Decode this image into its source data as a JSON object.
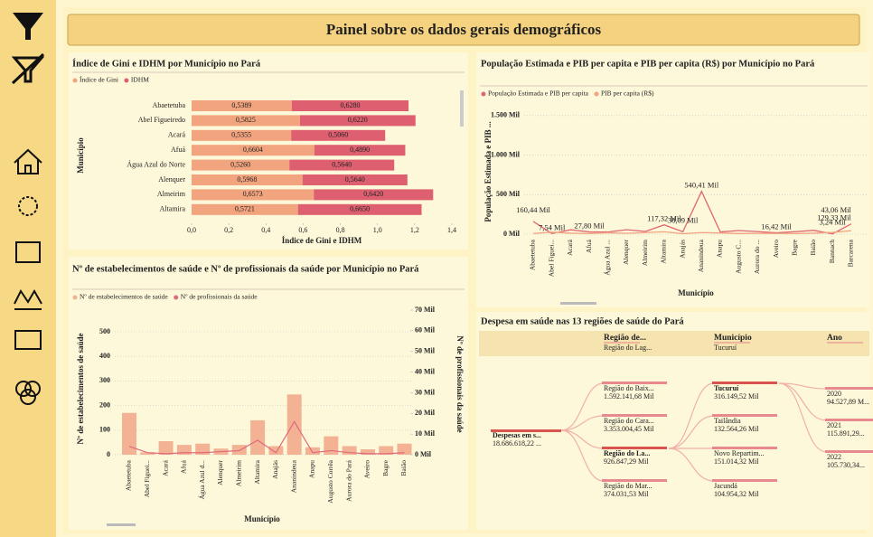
{
  "header": {
    "title": "Painel sobre os dados gerais demográficos"
  },
  "chart_data": [
    {
      "type": "bar",
      "orientation": "horizontal",
      "stacked": true,
      "grid": false,
      "title": "Índice de Gini e IDHM por Município no Pará",
      "xlabel": "Índice de Gini e IDHM",
      "ylabel": "Município",
      "categories": [
        "Abaetetuba",
        "Abel Figueiredo",
        "Acará",
        "Afuá",
        "Água Azul do Norte",
        "Alenquer",
        "Almeirim",
        "Altamira"
      ],
      "series": [
        {
          "name": "Índice de Gini",
          "color": "#f2a47e",
          "values": [
            0.5389,
            0.5825,
            0.5355,
            0.6604,
            0.526,
            0.5968,
            0.6573,
            0.5721
          ],
          "value_labels": [
            "0,5389",
            "0,5825",
            "0,5355",
            "0,6604",
            "0,5260",
            "0,5968",
            "0,6573",
            "0,5721"
          ]
        },
        {
          "name": "IDHM",
          "color": "#de5f6f",
          "values": [
            0.628,
            0.622,
            0.506,
            0.489,
            0.564,
            0.564,
            0.642,
            0.665
          ],
          "value_labels": [
            "0,6280",
            "0,6220",
            "0,5060",
            "0,4890",
            "0,5640",
            "0,5640",
            "0,6420",
            "0,6650"
          ]
        }
      ],
      "xlim": [
        0,
        1.4
      ],
      "xticks": [
        {
          "value": 0,
          "label": "0,0"
        },
        {
          "value": 0.2,
          "label": "0,2"
        },
        {
          "value": 0.4,
          "label": "0,4"
        },
        {
          "value": 0.6,
          "label": "0,6"
        },
        {
          "value": 0.8,
          "label": "0,8"
        },
        {
          "value": 1.0,
          "label": "1,0"
        },
        {
          "value": 1.2,
          "label": "1,2"
        },
        {
          "value": 1.4,
          "label": "1,4"
        }
      ]
    },
    {
      "type": "line",
      "grid": true,
      "title": "População Estimada e PIB per capita e PIB per capita (R$) por Município no Pará",
      "xlabel": "Município",
      "ylabel": "População Estimada e PIB ...",
      "categories": [
        "Abaetetuba",
        "Abel Figuei...",
        "Acará",
        "Afuá",
        "Água Azul ...",
        "Alenquer",
        "Almeirim",
        "Altamira",
        "Anajás",
        "Ananindeua",
        "Anapu",
        "Augusto C...",
        "Aurora do ...",
        "Aveiro",
        "Bagre",
        "Baião",
        "Bannach",
        "Barcarena"
      ],
      "series": [
        {
          "name": "População Estimada e PIB per capita",
          "color": "#e06575",
          "values": [
            160.44,
            7.54,
            55,
            27.8,
            27,
            56,
            34,
            117.32,
            30.09,
            540.41,
            28,
            46,
            31,
            16.42,
            31,
            48,
            3.24,
            129.33
          ],
          "value_labels": [
            "160,44 Mil",
            "7,54 Mil",
            null,
            "27,80 Mil",
            null,
            null,
            null,
            "117,32 Mil",
            "30,09 Mil",
            "540,41 Mil",
            null,
            null,
            null,
            "16,42 Mil",
            null,
            null,
            "3,24 Mil",
            "129,33 Mil"
          ]
        },
        {
          "name": "PIB per capita (R$)",
          "color": "#f2a47e",
          "values": [
            9,
            25,
            12,
            7,
            18,
            10,
            20,
            30,
            6,
            20,
            15,
            8,
            10,
            9,
            8,
            12,
            22,
            43.06
          ],
          "value_labels": [
            null,
            null,
            null,
            null,
            null,
            null,
            null,
            null,
            null,
            null,
            null,
            null,
            null,
            null,
            null,
            null,
            null,
            "43,06 Mil"
          ]
        }
      ],
      "ylim": [
        0,
        1600
      ],
      "yticks": [
        {
          "value": 0,
          "label": "0 Mil"
        },
        {
          "value": 500,
          "label": "500 Mil"
        },
        {
          "value": 1000,
          "label": "1.000 Mil"
        },
        {
          "value": 1500,
          "label": "1.500 Mil"
        }
      ]
    },
    {
      "type": "combo",
      "grid": true,
      "title": "Nº de estabelecimentos de saúde e Nº de profissionais da saúde por Município no Pará",
      "xlabel": "Município",
      "ylabel": "Nº de estabelecimentos de saúde",
      "y2label": "Nº de profissionais da saúde",
      "categories": [
        "Abaetetuba",
        "Abel Figuei...",
        "Acará",
        "Afuá",
        "Água Azul d...",
        "Alenquer",
        "Almeirim",
        "Altamira",
        "Anajás",
        "Ananindeua",
        "Anapu",
        "Augusto Corrêa",
        "Aurora do Pará",
        "Aveiro",
        "Bagre",
        "Baião"
      ],
      "series": [
        {
          "name": "Nº de estabelecimentos de saúde",
          "type": "bar",
          "color": "#f4b294",
          "values": [
            170,
            10,
            55,
            40,
            45,
            25,
            40,
            140,
            35,
            245,
            30,
            75,
            35,
            22,
            35,
            45
          ]
        },
        {
          "name": "Nº de profissionais da saúde",
          "type": "line",
          "axis": "y2",
          "color": "#de6a7c",
          "values": [
            4,
            1,
            0.5,
            1,
            1,
            1.5,
            2,
            7,
            1,
            16,
            1,
            2,
            1,
            0.5,
            0.5,
            1
          ]
        }
      ],
      "ylim": [
        0,
        588
      ],
      "yticks": [
        0,
        100,
        200,
        300,
        400,
        500
      ],
      "y2lim": [
        0,
        70
      ],
      "y2ticks": [
        {
          "value": 0,
          "label": "0 Mil"
        },
        {
          "value": 10,
          "label": "10 Mil"
        },
        {
          "value": 20,
          "label": "20 Mil"
        },
        {
          "value": 30,
          "label": "30 Mil"
        },
        {
          "value": 40,
          "label": "40 Mil"
        },
        {
          "value": 50,
          "label": "50 Mil"
        },
        {
          "value": 60,
          "label": "60 Mil"
        },
        {
          "value": 70,
          "label": "70 Mil"
        }
      ]
    }
  ],
  "tree": {
    "title": "Despesa em saúde nas 13 regiões de saúde do Pará",
    "columns": [
      {
        "name": "Região de...",
        "selected": "Região do Lag..."
      },
      {
        "name": "Município",
        "selected": "Tucuruí"
      },
      {
        "name": "Ano"
      }
    ],
    "root": {
      "label": "Despesas em s...",
      "value": "18.686.618,22 ..."
    },
    "levels": [
      [
        {
          "label": "Região do Baix...",
          "value": "1.592.141,68 Mil"
        },
        {
          "label": "Região do Cara...",
          "value": "3.353.004,45 Mil"
        },
        {
          "label": "Região do La...",
          "value": "926.847,29 Mil"
        },
        {
          "label": "Região do Mar...",
          "value": "374.031,53 Mil"
        }
      ],
      [
        {
          "label": "Tucuruí",
          "value": "316.149,52 Mil"
        },
        {
          "label": "Tailândia",
          "value": "132.564,26 Mil"
        },
        {
          "label": "Novo Repartim...",
          "value": "151.014,32 Mil"
        },
        {
          "label": "Jacundá",
          "value": "104.954,32 Mil"
        }
      ],
      [
        {
          "label": "2020",
          "value": "94.527,89 M..."
        },
        {
          "label": "2021",
          "value": "115.891,29..."
        },
        {
          "label": "2022",
          "value": "105.730,34..."
        }
      ]
    ]
  }
}
